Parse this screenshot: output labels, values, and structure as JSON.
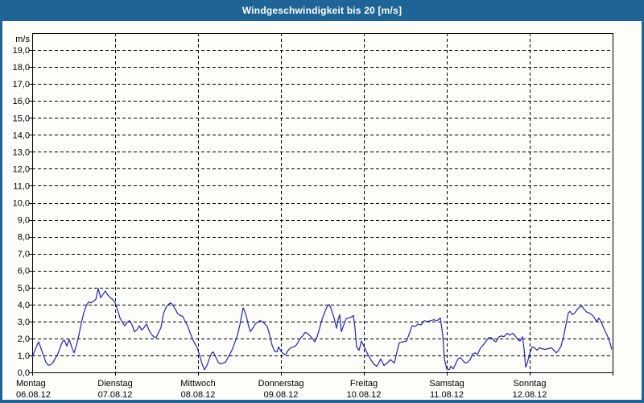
{
  "window": {
    "title_bar_text": "Windgeschwindigkeit bis 20 [m/s]",
    "title_bar_bg": "#1e6496",
    "title_bar_fg": "#ffffff",
    "border_color": "#1e6496",
    "background": "#fdfefa"
  },
  "chart_data": {
    "type": "line",
    "title": "Windgeschwindigkeit bis 20 [m/s]",
    "unit_label": "m/s",
    "ylim": [
      0,
      20
    ],
    "grid": "dashed",
    "axis_color": "#000000",
    "text_color": "#000000",
    "line_color": "#2222be",
    "y_tick_labels": [
      "0,0",
      "1,0",
      "2,0",
      "3,0",
      "4,0",
      "5,0",
      "6,0",
      "7,0",
      "8,0",
      "9,0",
      "10,0",
      "11,0",
      "12,0",
      "13,0",
      "14,0",
      "15,0",
      "16,0",
      "17,0",
      "18,0",
      "19,0"
    ],
    "x_days": [
      {
        "name": "Montag",
        "date": "06.08.12"
      },
      {
        "name": "Dienstag",
        "date": "07.08.12"
      },
      {
        "name": "Mittwoch",
        "date": "08.08.12"
      },
      {
        "name": "Donnerstag",
        "date": "09.08.12"
      },
      {
        "name": "Freitag",
        "date": "10.08.12"
      },
      {
        "name": "Samstag",
        "date": "11.08.12"
      },
      {
        "name": "Sonntag",
        "date": "12.08.12"
      }
    ],
    "series": [
      {
        "name": "Windgeschwindigkeit",
        "x_unit": "days_from_start",
        "y_unit": "m/s",
        "points": [
          [
            0,
            0.9
          ],
          [
            0.029,
            1.25
          ],
          [
            0.058,
            1.6
          ],
          [
            0.078,
            1.8
          ],
          [
            0.107,
            1.4
          ],
          [
            0.136,
            1.0
          ],
          [
            0.165,
            0.6
          ],
          [
            0.194,
            0.42
          ],
          [
            0.223,
            0.45
          ],
          [
            0.252,
            0.6
          ],
          [
            0.282,
            0.85
          ],
          [
            0.311,
            1.1
          ],
          [
            0.34,
            1.5
          ],
          [
            0.369,
            1.85
          ],
          [
            0.388,
            1.9
          ],
          [
            0.417,
            1.55
          ],
          [
            0.447,
            1.95
          ],
          [
            0.476,
            1.5
          ],
          [
            0.505,
            1.15
          ],
          [
            0.534,
            1.6
          ],
          [
            0.563,
            2.2
          ],
          [
            0.592,
            2.9
          ],
          [
            0.621,
            3.5
          ],
          [
            0.65,
            3.9
          ],
          [
            0.68,
            4.15
          ],
          [
            0.709,
            4.1
          ],
          [
            0.738,
            4.2
          ],
          [
            0.767,
            4.3
          ],
          [
            0.796,
            4.95
          ],
          [
            0.825,
            4.4
          ],
          [
            0.854,
            4.6
          ],
          [
            0.883,
            4.8
          ],
          [
            0.913,
            4.55
          ],
          [
            0.942,
            4.4
          ],
          [
            0.971,
            4.3
          ],
          [
            1.0,
            4.1
          ],
          [
            1.029,
            3.7
          ],
          [
            1.058,
            3.2
          ],
          [
            1.087,
            2.95
          ],
          [
            1.117,
            2.75
          ],
          [
            1.146,
            2.95
          ],
          [
            1.175,
            3.05
          ],
          [
            1.204,
            2.8
          ],
          [
            1.233,
            2.4
          ],
          [
            1.262,
            2.5
          ],
          [
            1.291,
            2.75
          ],
          [
            1.32,
            2.5
          ],
          [
            1.35,
            2.65
          ],
          [
            1.379,
            2.85
          ],
          [
            1.408,
            2.5
          ],
          [
            1.437,
            2.25
          ],
          [
            1.466,
            2.1
          ],
          [
            1.495,
            2.05
          ],
          [
            1.524,
            2.35
          ],
          [
            1.553,
            2.65
          ],
          [
            1.583,
            3.45
          ],
          [
            1.612,
            3.8
          ],
          [
            1.641,
            4.0
          ],
          [
            1.67,
            4.1
          ],
          [
            1.699,
            3.95
          ],
          [
            1.728,
            3.7
          ],
          [
            1.757,
            3.45
          ],
          [
            1.786,
            3.35
          ],
          [
            1.816,
            3.3
          ],
          [
            1.845,
            3.0
          ],
          [
            1.874,
            2.75
          ],
          [
            1.903,
            2.35
          ],
          [
            1.932,
            2.0
          ],
          [
            1.961,
            1.7
          ],
          [
            1.99,
            1.45
          ],
          [
            2.019,
            1.0
          ],
          [
            2.049,
            0.5
          ],
          [
            2.078,
            0.15
          ],
          [
            2.107,
            0.4
          ],
          [
            2.136,
            0.8
          ],
          [
            2.165,
            1.15
          ],
          [
            2.184,
            1.2
          ],
          [
            2.214,
            0.9
          ],
          [
            2.243,
            0.6
          ],
          [
            2.272,
            0.5
          ],
          [
            2.301,
            0.55
          ],
          [
            2.33,
            0.6
          ],
          [
            2.359,
            0.85
          ],
          [
            2.388,
            1.1
          ],
          [
            2.417,
            1.4
          ],
          [
            2.447,
            1.8
          ],
          [
            2.476,
            2.2
          ],
          [
            2.505,
            2.8
          ],
          [
            2.524,
            3.3
          ],
          [
            2.544,
            3.8
          ],
          [
            2.563,
            3.6
          ],
          [
            2.583,
            3.3
          ],
          [
            2.612,
            2.7
          ],
          [
            2.631,
            2.4
          ],
          [
            2.66,
            2.6
          ],
          [
            2.689,
            2.85
          ],
          [
            2.718,
            2.95
          ],
          [
            2.748,
            3.05
          ],
          [
            2.777,
            3.0
          ],
          [
            2.806,
            2.85
          ],
          [
            2.835,
            2.7
          ],
          [
            2.864,
            2.2
          ],
          [
            2.893,
            1.6
          ],
          [
            2.922,
            1.25
          ],
          [
            2.951,
            1.2
          ],
          [
            2.971,
            1.5
          ],
          [
            3.0,
            1.25
          ],
          [
            3.029,
            1.1
          ],
          [
            3.058,
            1.05
          ],
          [
            3.087,
            1.3
          ],
          [
            3.117,
            1.45
          ],
          [
            3.146,
            1.5
          ],
          [
            3.175,
            1.55
          ],
          [
            3.204,
            1.75
          ],
          [
            3.233,
            2.0
          ],
          [
            3.262,
            2.15
          ],
          [
            3.291,
            2.35
          ],
          [
            3.32,
            2.3
          ],
          [
            3.35,
            2.15
          ],
          [
            3.379,
            2.0
          ],
          [
            3.408,
            1.8
          ],
          [
            3.437,
            2.1
          ],
          [
            3.466,
            2.6
          ],
          [
            3.495,
            3.1
          ],
          [
            3.524,
            3.5
          ],
          [
            3.553,
            3.85
          ],
          [
            3.583,
            4.0
          ],
          [
            3.602,
            3.8
          ],
          [
            3.621,
            3.5
          ],
          [
            3.641,
            3.2
          ],
          [
            3.67,
            2.6
          ],
          [
            3.689,
            3.1
          ],
          [
            3.709,
            3.4
          ],
          [
            3.728,
            2.4
          ],
          [
            3.757,
            2.8
          ],
          [
            3.786,
            3.15
          ],
          [
            3.816,
            3.2
          ],
          [
            3.845,
            3.25
          ],
          [
            3.874,
            3.35
          ],
          [
            3.893,
            2.6
          ],
          [
            3.913,
            1.5
          ],
          [
            3.942,
            1.3
          ],
          [
            3.971,
            1.85
          ],
          [
            4.0,
            1.55
          ],
          [
            4.039,
            1.15
          ],
          [
            4.078,
            0.8
          ],
          [
            4.117,
            0.5
          ],
          [
            4.155,
            0.35
          ],
          [
            4.184,
            0.6
          ],
          [
            4.204,
            0.8
          ],
          [
            4.243,
            0.4
          ],
          [
            4.282,
            0.55
          ],
          [
            4.32,
            0.75
          ],
          [
            4.369,
            0.55
          ],
          [
            4.398,
            1.2
          ],
          [
            4.427,
            1.75
          ],
          [
            4.466,
            1.8
          ],
          [
            4.515,
            1.85
          ],
          [
            4.553,
            2.35
          ],
          [
            4.583,
            2.75
          ],
          [
            4.621,
            2.7
          ],
          [
            4.65,
            2.85
          ],
          [
            4.689,
            2.8
          ],
          [
            4.728,
            3.05
          ],
          [
            4.767,
            3.0
          ],
          [
            4.806,
            3.05
          ],
          [
            4.845,
            3.1
          ],
          [
            4.883,
            3.05
          ],
          [
            4.922,
            3.2
          ],
          [
            4.951,
            2.2
          ],
          [
            4.971,
            0.8
          ],
          [
            5.0,
            0.2
          ],
          [
            5.029,
            0.15
          ],
          [
            5.049,
            0.37
          ],
          [
            5.078,
            0.2
          ],
          [
            5.107,
            0.5
          ],
          [
            5.136,
            0.8
          ],
          [
            5.165,
            0.87
          ],
          [
            5.194,
            0.7
          ],
          [
            5.223,
            0.55
          ],
          [
            5.252,
            0.6
          ],
          [
            5.282,
            0.75
          ],
          [
            5.311,
            1.08
          ],
          [
            5.34,
            1.15
          ],
          [
            5.369,
            1.05
          ],
          [
            5.408,
            1.45
          ],
          [
            5.437,
            1.6
          ],
          [
            5.476,
            1.85
          ],
          [
            5.505,
            2.05
          ],
          [
            5.534,
            2.05
          ],
          [
            5.563,
            1.9
          ],
          [
            5.592,
            1.8
          ],
          [
            5.631,
            2.1
          ],
          [
            5.66,
            2.15
          ],
          [
            5.689,
            2.1
          ],
          [
            5.728,
            2.3
          ],
          [
            5.757,
            2.2
          ],
          [
            5.796,
            2.3
          ],
          [
            5.825,
            2.15
          ],
          [
            5.854,
            1.95
          ],
          [
            5.883,
            1.85
          ],
          [
            5.913,
            2.1
          ],
          [
            5.932,
            1.4
          ],
          [
            5.951,
            0.3
          ],
          [
            5.971,
            0.55
          ],
          [
            6.0,
            1.1
          ],
          [
            6.029,
            1.5
          ],
          [
            6.058,
            1.45
          ],
          [
            6.087,
            1.3
          ],
          [
            6.117,
            1.45
          ],
          [
            6.146,
            1.4
          ],
          [
            6.184,
            1.35
          ],
          [
            6.223,
            1.4
          ],
          [
            6.262,
            1.45
          ],
          [
            6.291,
            1.3
          ],
          [
            6.32,
            1.15
          ],
          [
            6.35,
            1.3
          ],
          [
            6.379,
            1.55
          ],
          [
            6.408,
            2.1
          ],
          [
            6.437,
            2.8
          ],
          [
            6.466,
            3.5
          ],
          [
            6.485,
            3.6
          ],
          [
            6.515,
            3.4
          ],
          [
            6.544,
            3.5
          ],
          [
            6.573,
            3.7
          ],
          [
            6.602,
            3.85
          ],
          [
            6.631,
            3.9
          ],
          [
            6.66,
            3.7
          ],
          [
            6.689,
            3.55
          ],
          [
            6.718,
            3.5
          ],
          [
            6.748,
            3.4
          ],
          [
            6.777,
            3.25
          ],
          [
            6.806,
            3.0
          ],
          [
            6.835,
            3.2
          ],
          [
            6.864,
            2.95
          ],
          [
            6.893,
            2.6
          ],
          [
            6.922,
            2.3
          ],
          [
            6.951,
            2.0
          ],
          [
            6.971,
            1.7
          ],
          [
            6.99,
            1.35
          ]
        ]
      }
    ]
  }
}
